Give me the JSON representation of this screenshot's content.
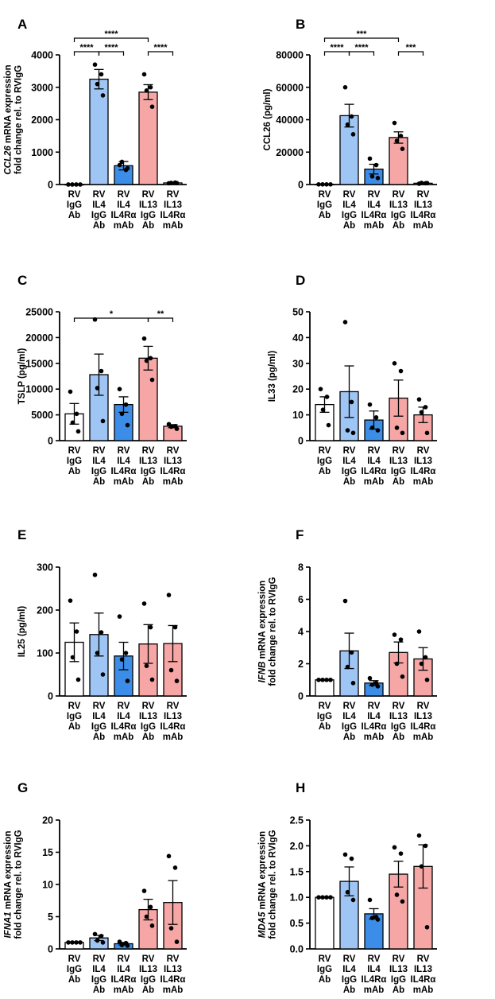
{
  "colors": {
    "rv_igg": "#ffffff",
    "il4": "#9ec5f3",
    "il4_mab": "#3c8de8",
    "il13": "#f7a6a6",
    "il13_mab": "#f7a6a6",
    "stroke": "#000000"
  },
  "categories": [
    [
      "RV",
      "IgG",
      "Ab"
    ],
    [
      "RV",
      "IL4",
      "IgG",
      "Ab"
    ],
    [
      "RV",
      "IL4",
      "IL4Rα",
      "mAb"
    ],
    [
      "RV",
      "IL13",
      "IgG",
      "Ab"
    ],
    [
      "RV",
      "IL13",
      "IL4Rα",
      "mAb"
    ]
  ],
  "chart_data": [
    {
      "panel": "A",
      "type": "bar",
      "ylabel_lines": [
        [
          {
            "t": "CCL26",
            "i": true
          },
          {
            "t": " mRNA expression",
            "i": false
          }
        ],
        [
          {
            "t": "fold change rel. to RVIgG",
            "i": false
          }
        ]
      ],
      "ylim": [
        0,
        4000
      ],
      "yticks": [
        0,
        1000,
        2000,
        3000,
        4000
      ],
      "values": [
        1,
        3250,
        580,
        2850,
        50
      ],
      "sem": [
        0,
        300,
        130,
        230,
        15
      ],
      "points": [
        [
          1,
          1,
          1,
          1
        ],
        [
          3700,
          3400,
          3100,
          2750
        ],
        [
          600,
          450,
          700,
          500
        ],
        [
          3400,
          3000,
          2900,
          2400
        ],
        [
          40,
          60,
          50,
          45
        ]
      ],
      "sig": [
        {
          "from": 0,
          "to": 1,
          "label": "****",
          "level": 1
        },
        {
          "from": 1,
          "to": 2,
          "label": "****",
          "level": 1
        },
        {
          "from": 3,
          "to": 4,
          "label": "****",
          "level": 1
        },
        {
          "from": 0,
          "to": 3,
          "label": "****",
          "level": 2
        }
      ]
    },
    {
      "panel": "B",
      "type": "bar",
      "ylabel_lines": [
        [
          {
            "t": "CCL26 (pg/ml)",
            "i": false
          }
        ]
      ],
      "ylim": [
        0,
        80000
      ],
      "yticks": [
        0,
        20000,
        40000,
        60000,
        80000
      ],
      "values": [
        100,
        42500,
        9500,
        29000,
        800
      ],
      "sem": [
        0,
        7000,
        3000,
        3500,
        300
      ],
      "points": [
        [
          100,
          100,
          100,
          100
        ],
        [
          60000,
          42000,
          37000,
          31000
        ],
        [
          16000,
          12000,
          5000,
          4000
        ],
        [
          38000,
          30000,
          27000,
          22000
        ],
        [
          500,
          800,
          1000,
          900
        ]
      ],
      "sig": [
        {
          "from": 1,
          "to": 2,
          "label": "****",
          "level": 1
        },
        {
          "from": 3,
          "to": 4,
          "label": "***",
          "level": 1
        },
        {
          "from": 0,
          "to": 1,
          "label": "****",
          "level": 1
        },
        {
          "from": 0,
          "to": 3,
          "label": "***",
          "level": 2
        }
      ]
    },
    {
      "panel": "C",
      "type": "bar",
      "ylabel_lines": [
        [
          {
            "t": "TSLP (pg/ml)",
            "i": false
          }
        ]
      ],
      "ylim": [
        0,
        25000
      ],
      "yticks": [
        0,
        5000,
        10000,
        15000,
        20000,
        25000
      ],
      "values": [
        5200,
        12800,
        7000,
        16000,
        2800
      ],
      "sem": [
        2000,
        4000,
        1500,
        2300,
        300
      ],
      "points": [
        [
          9500,
          5200,
          3500,
          1800
        ],
        [
          23500,
          13500,
          10200,
          3800
        ],
        [
          10000,
          7000,
          5200,
          3000
        ],
        [
          19800,
          16000,
          15500,
          11800
        ],
        [
          3200,
          2800,
          2700,
          2300
        ]
      ],
      "sig": [
        {
          "from": 3,
          "to": 4,
          "label": "**",
          "level": 1
        },
        {
          "from": 0,
          "to": 3,
          "label": "*",
          "level": 1
        }
      ]
    },
    {
      "panel": "D",
      "type": "bar",
      "ylabel_lines": [
        [
          {
            "t": "IL33 (pg/ml)",
            "i": false
          }
        ]
      ],
      "ylim": [
        0,
        50
      ],
      "yticks": [
        0,
        10,
        20,
        30,
        40,
        50
      ],
      "values": [
        14,
        19,
        8,
        16.5,
        10
      ],
      "sem": [
        3,
        10,
        3.5,
        7,
        3
      ],
      "points": [
        [
          20,
          17,
          12,
          6
        ],
        [
          46,
          15,
          4,
          3
        ],
        [
          14,
          9,
          5,
          4
        ],
        [
          30,
          27,
          5,
          3
        ],
        [
          16,
          13,
          11,
          3
        ]
      ],
      "sig": []
    },
    {
      "panel": "E",
      "type": "bar",
      "ylabel_lines": [
        [
          {
            "t": "IL25 (pg/ml)",
            "i": false
          }
        ]
      ],
      "ylim": [
        0,
        300
      ],
      "yticks": [
        0,
        100,
        200,
        300
      ],
      "values": [
        125,
        143,
        93,
        121,
        122
      ],
      "sem": [
        45,
        50,
        32,
        45,
        42
      ],
      "points": [
        [
          222,
          150,
          90,
          38
        ],
        [
          282,
          148,
          100,
          50
        ],
        [
          185,
          100,
          85,
          35
        ],
        [
          215,
          160,
          70,
          38
        ],
        [
          235,
          160,
          60,
          35
        ]
      ],
      "sig": []
    },
    {
      "panel": "F",
      "type": "bar",
      "ylabel_lines": [
        [
          {
            "t": "IFNB",
            "i": true
          },
          {
            "t": " mRNA expression",
            "i": false
          }
        ],
        [
          {
            "t": "fold change rel. to RVIgG",
            "i": false
          }
        ]
      ],
      "ylim": [
        0,
        8
      ],
      "yticks": [
        0,
        2,
        4,
        6,
        8
      ],
      "values": [
        1,
        2.8,
        0.8,
        2.7,
        2.3
      ],
      "sem": [
        0,
        1.1,
        0.15,
        0.65,
        0.7
      ],
      "points": [
        [
          1,
          1,
          1,
          1
        ],
        [
          5.9,
          2.7,
          1.8,
          0.8
        ],
        [
          1.1,
          0.8,
          0.7,
          0.6
        ],
        [
          3.8,
          3.5,
          2.0,
          1.2
        ],
        [
          4.0,
          2.4,
          2.0,
          1.0
        ]
      ],
      "sig": []
    },
    {
      "panel": "G",
      "type": "bar",
      "ylabel_lines": [
        [
          {
            "t": "IFNA1",
            "i": true
          },
          {
            "t": " mRNA expression",
            "i": false
          }
        ],
        [
          {
            "t": "fold change rel. to RVIgG",
            "i": false
          }
        ]
      ],
      "ylim": [
        0,
        20
      ],
      "yticks": [
        0,
        5,
        10,
        15,
        20
      ],
      "values": [
        1,
        1.7,
        0.8,
        6.1,
        7.2
      ],
      "sem": [
        0,
        0.4,
        0.2,
        1.6,
        3.4
      ],
      "points": [
        [
          1,
          1,
          1,
          1
        ],
        [
          2.3,
          2.0,
          1.3,
          1.0
        ],
        [
          1.1,
          0.9,
          0.6,
          0.5
        ],
        [
          9.0,
          6.5,
          5.0,
          3.6
        ],
        [
          14.4,
          12.6,
          3.2,
          1.1
        ]
      ],
      "sig": []
    },
    {
      "panel": "H",
      "type": "bar",
      "ylabel_lines": [
        [
          {
            "t": "MDA5",
            "i": true
          },
          {
            "t": " mRNA expression",
            "i": false
          }
        ],
        [
          {
            "t": "fold change rel. to RVIgG",
            "i": false
          }
        ]
      ],
      "ylim": [
        0,
        2.5
      ],
      "yticks": [
        0.0,
        0.5,
        1.0,
        1.5,
        2.0,
        2.5
      ],
      "values": [
        1,
        1.31,
        0.68,
        1.45,
        1.6
      ],
      "sem": [
        0,
        0.28,
        0.1,
        0.25,
        0.42
      ],
      "points": [
        [
          1,
          1,
          1,
          1
        ],
        [
          1.83,
          1.75,
          1.1,
          0.95
        ],
        [
          0.95,
          0.62,
          0.6,
          0.57
        ],
        [
          1.97,
          1.85,
          1.05,
          0.92
        ],
        [
          2.2,
          2.0,
          1.6,
          0.42
        ]
      ],
      "sig": []
    }
  ]
}
